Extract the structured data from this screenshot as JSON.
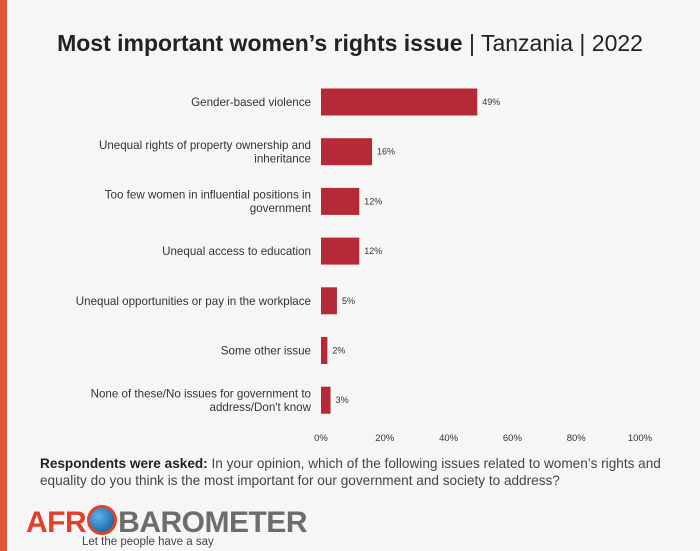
{
  "title": {
    "main": "Most important women’s rights issue",
    "sub": "| Tanzania | 2022"
  },
  "chart_data": {
    "type": "bar",
    "orientation": "horizontal",
    "categories": [
      [
        "Gender-based violence"
      ],
      [
        "Unequal rights of property ownership and",
        "inheritance"
      ],
      [
        "Too few women in influential positions in",
        "government"
      ],
      [
        "Unequal access to education"
      ],
      [
        "Unequal opportunities or pay in the workplace"
      ],
      [
        "Some other issue"
      ],
      [
        "None of these/No issues for government to",
        "address/Don't know"
      ]
    ],
    "values": [
      49,
      16,
      12,
      12,
      5,
      2,
      3
    ],
    "value_labels": [
      "49%",
      "16%",
      "12%",
      "12%",
      "5%",
      "2%",
      "3%"
    ],
    "xticks": [
      "0%",
      "20%",
      "40%",
      "60%",
      "80%",
      "100%"
    ],
    "xlim": [
      0,
      100
    ],
    "bar_color": "#b52a36",
    "grid": false,
    "legend": "none"
  },
  "question": {
    "lead": "Respondents were asked:",
    "text": "In your opinion, which of the following issues related to women’s rights and equality do you think is the most important for our government and society to address?"
  },
  "logo": {
    "part1": "AFR",
    "part2": "BAROMETER",
    "tagline": "Let the people have a say"
  },
  "colors": {
    "accent": "#e2553a",
    "logo_red": "#e0412b",
    "logo_grey": "#6d6d6d"
  }
}
